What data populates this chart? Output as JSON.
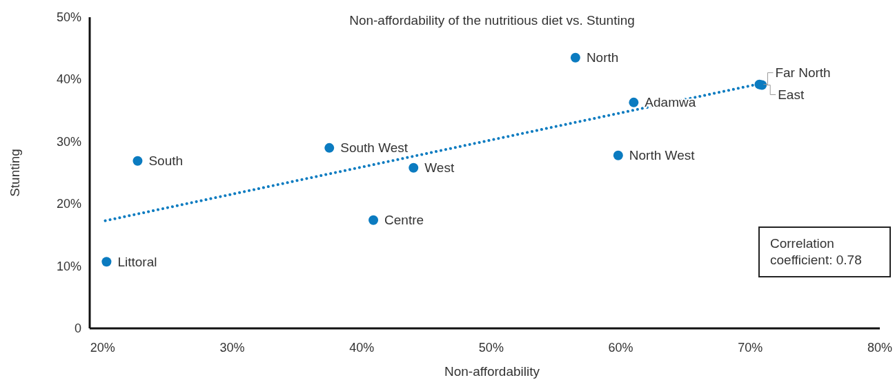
{
  "chart_data": {
    "type": "scatter",
    "title": "Non-affordability of the nutritious diet vs. Stunting",
    "xlabel": "Non-affordability",
    "ylabel": "Stunting",
    "xlim": [
      19,
      80
    ],
    "xticks": [
      {
        "value": 20,
        "label": "20%"
      },
      {
        "value": 30,
        "label": "30%"
      },
      {
        "value": 40,
        "label": "40%"
      },
      {
        "value": 50,
        "label": "50%"
      },
      {
        "value": 60,
        "label": "60%"
      },
      {
        "value": 70,
        "label": "70%"
      },
      {
        "value": 80,
        "label": "80%"
      }
    ],
    "ylim": [
      0,
      50
    ],
    "yticks": [
      0,
      {
        "value": 10,
        "label": "10%"
      },
      {
        "value": 20,
        "label": "20%"
      },
      {
        "value": 30,
        "label": "30%"
      },
      {
        "value": 40,
        "label": "40%"
      },
      {
        "value": 50,
        "label": "50%"
      }
    ],
    "marker": "circle",
    "series": [
      {
        "color": "#0b7bc0",
        "x": [
          20.3,
          22.7,
          37.5,
          44.0,
          40.9,
          56.5,
          61.0,
          59.8,
          70.7,
          70.9
        ],
        "values": [
          10.7,
          26.9,
          29.0,
          25.8,
          17.4,
          43.5,
          36.3,
          27.8,
          39.2,
          39.1
        ]
      },
      {
        "type": "line",
        "color": "#0b7bc0",
        "line_style": "dotted",
        "marker": "none",
        "x": [
          20.2,
          70.5
        ],
        "values": [
          17.3,
          39.2
        ]
      }
    ],
    "annotations": [
      {
        "text": "Littoral",
        "x": 20.3,
        "y": 10.7
      },
      {
        "text": "South",
        "x": 22.7,
        "y": 26.9
      },
      {
        "text": "South West",
        "x": 37.5,
        "y": 29.0
      },
      {
        "text": "West",
        "x": 44.0,
        "y": 25.8
      },
      {
        "text": "Centre",
        "x": 40.9,
        "y": 17.4
      },
      {
        "text": "North",
        "x": 56.5,
        "y": 43.5
      },
      {
        "text": "Adamwa",
        "x": 61.0,
        "y": 36.3
      },
      {
        "text": "North West",
        "x": 59.8,
        "y": 27.8
      },
      {
        "text": "Far North",
        "x": 70.7,
        "y": 39.2
      },
      {
        "text": "East",
        "x": 70.9,
        "y": 39.1
      },
      "Correlation coefficient: 0.78"
    ]
  }
}
